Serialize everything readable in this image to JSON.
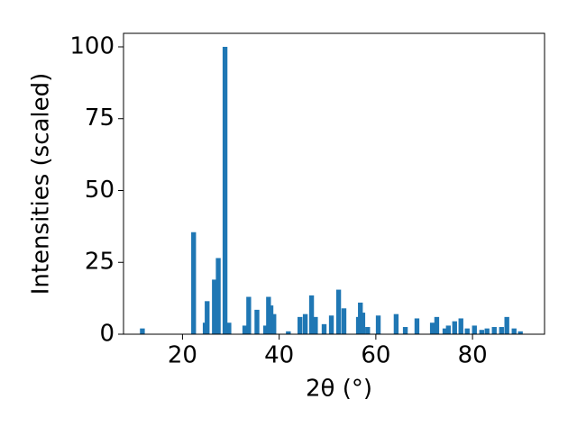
{
  "chart_data": {
    "type": "bar",
    "xlabel": "2θ (°)",
    "ylabel": "Intensities (scaled)",
    "color": "#1f77b4",
    "bar_width": 1,
    "x": [
      11.7,
      22.3,
      24.7,
      25.1,
      26.6,
      27.4,
      28.8,
      29.6,
      32.9,
      33.7,
      35.4,
      37.2,
      37.8,
      38.3,
      38.9,
      41.9,
      44.3,
      45.4,
      46.7,
      47.5,
      49.3,
      50.8,
      52.3,
      53.4,
      56.4,
      56.8,
      57.3,
      58.3,
      60.5,
      64.2,
      66.1,
      68.5,
      71.7,
      72.6,
      74.3,
      75.0,
      76.3,
      77.6,
      78.9,
      80.4,
      81.9,
      83.0,
      84.5,
      86.0,
      87.1,
      88.6,
      89.9
    ],
    "values": [
      2,
      35.5,
      4,
      11.5,
      19,
      26.5,
      100,
      4,
      3,
      13,
      8.5,
      3,
      13,
      10,
      7,
      1,
      6,
      7,
      13.5,
      6,
      3.5,
      6.5,
      15.5,
      9,
      6,
      11,
      7.5,
      2.5,
      6.5,
      7,
      2.5,
      5.5,
      4,
      6,
      2,
      3,
      4.5,
      5.5,
      2,
      3,
      1.5,
      2,
      2.5,
      2.5,
      6,
      2,
      1
    ],
    "xlim": [
      7.8,
      94.9
    ],
    "xticks": [
      20,
      40,
      60,
      80
    ],
    "ylim": [
      0,
      104.7
    ],
    "yticks": [
      0,
      25,
      50,
      75,
      100
    ]
  }
}
